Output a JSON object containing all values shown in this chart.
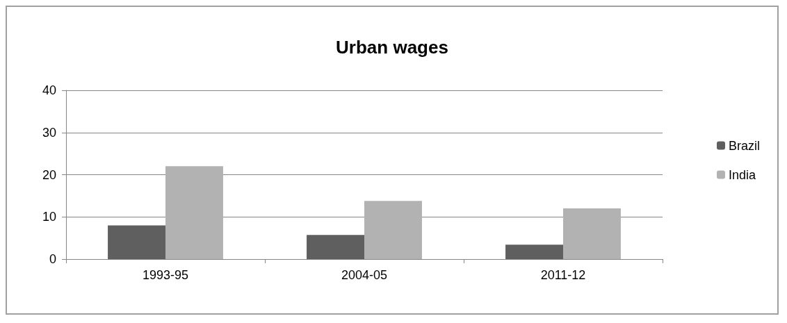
{
  "chart_data": {
    "type": "bar",
    "title": "Urban wages",
    "categories": [
      "1993-95",
      "2004-05",
      "2011-12"
    ],
    "series": [
      {
        "name": "Brazil",
        "color": "#5f5f5f",
        "values": [
          8,
          5.7,
          3.4
        ]
      },
      {
        "name": "India",
        "color": "#b2b2b2",
        "values": [
          22,
          13.8,
          12
        ]
      }
    ],
    "ylim": [
      0,
      40
    ],
    "yticks": [
      0,
      10,
      20,
      30,
      40
    ],
    "grid": "y",
    "legend": "right"
  }
}
